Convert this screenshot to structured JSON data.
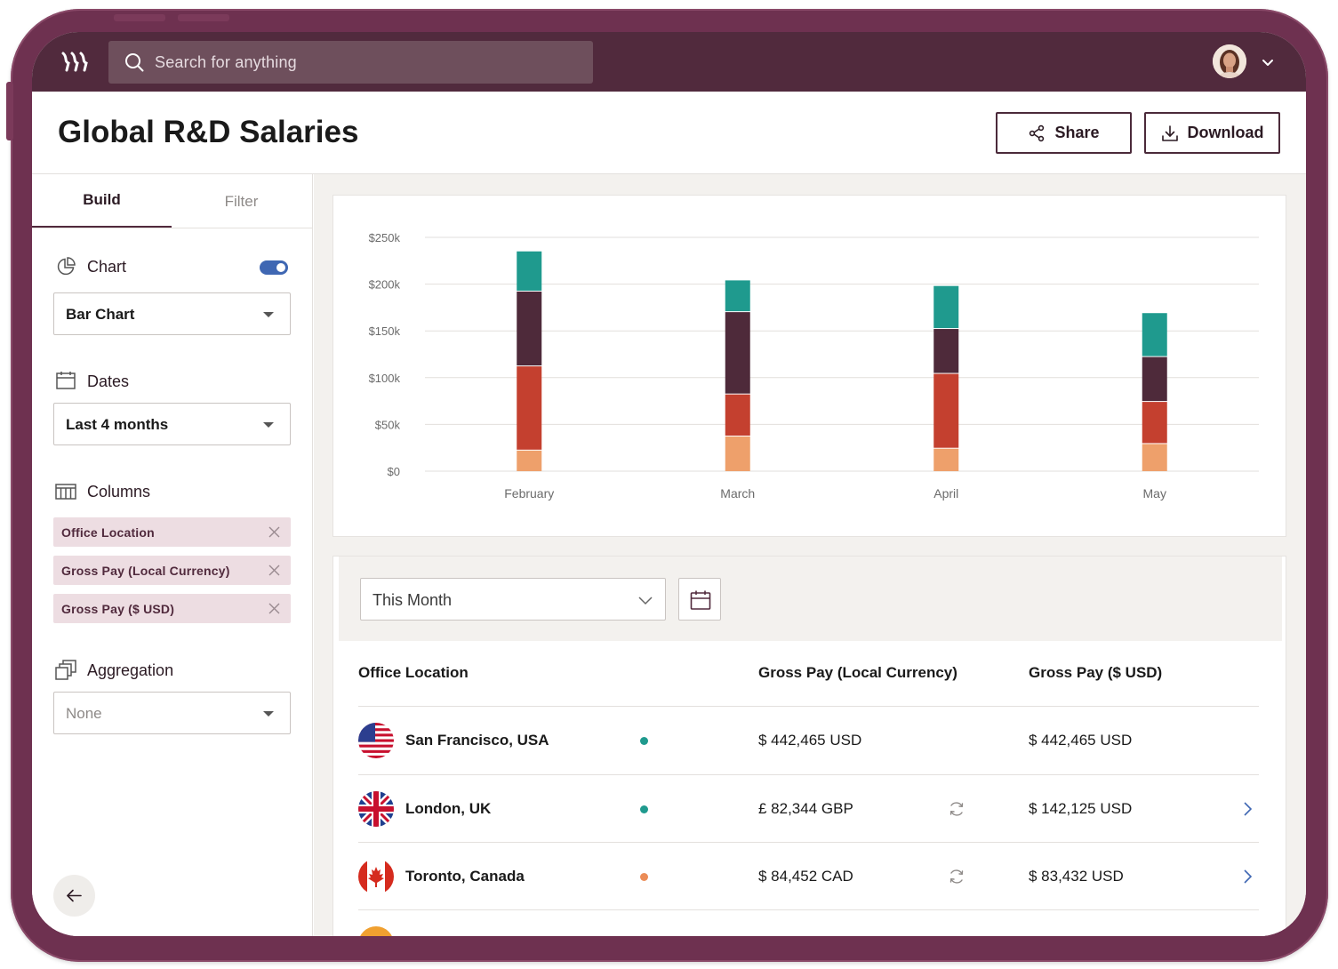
{
  "app": {
    "search_placeholder": "Search for anything"
  },
  "header": {
    "title": "Global R&D Salaries",
    "share_label": "Share",
    "download_label": "Download"
  },
  "sidebar": {
    "tabs": [
      {
        "label": "Build",
        "active": true
      },
      {
        "label": "Filter",
        "active": false
      }
    ],
    "chart": {
      "label": "Chart",
      "enabled": true,
      "value": "Bar Chart"
    },
    "dates": {
      "label": "Dates",
      "value": "Last 4 months"
    },
    "columns": {
      "label": "Columns",
      "items": [
        "Office Location",
        "Gross Pay (Local Currency)",
        "Gross Pay ($ USD)"
      ]
    },
    "aggregation": {
      "label": "Aggregation",
      "value": "None"
    }
  },
  "colors": {
    "teal": "#1f9a8e",
    "plum": "#4e2a3a",
    "red": "#c4402f",
    "orange": "#eea06b",
    "brand": "#512a3d"
  },
  "chart_data": {
    "type": "bar",
    "stacked": true,
    "categories": [
      "February",
      "March",
      "April",
      "May"
    ],
    "y_tick_labels": [
      "$0",
      "$50k",
      "$100k",
      "$150k",
      "$200k",
      "$250k"
    ],
    "ylim": [
      0,
      250000
    ],
    "grid": true,
    "series": [
      {
        "color": "#eea06b",
        "values": [
          23000,
          38000,
          25000,
          30000
        ]
      },
      {
        "color": "#c4402f",
        "values": [
          90000,
          45000,
          80000,
          45000
        ]
      },
      {
        "color": "#4e2a3a",
        "values": [
          80000,
          88000,
          48000,
          48000
        ]
      },
      {
        "color": "#1f9a8e",
        "values": [
          42000,
          33000,
          45000,
          46000
        ]
      }
    ]
  },
  "table": {
    "period": "This Month",
    "headers": [
      "Office Location",
      "Gross Pay (Local Currency)",
      "Gross Pay ($ USD)"
    ],
    "rows": [
      {
        "city": "San Francisco, USA",
        "flag": "us-flag-icon",
        "status": "#1f9a8e",
        "local": "$ 442,465 USD",
        "usd": "$ 442,465 USD",
        "converted": false
      },
      {
        "city": "London, UK",
        "flag": "uk-flag-icon",
        "status": "#1f9a8e",
        "local": "£ 82,344 GBP",
        "usd": "$ 142,125 USD",
        "converted": true
      },
      {
        "city": "Toronto, Canada",
        "flag": "canada-flag-icon",
        "status": "#eb8c57",
        "local": "$ 84,452 CAD",
        "usd": "$ 83,432 USD",
        "converted": true
      }
    ]
  }
}
